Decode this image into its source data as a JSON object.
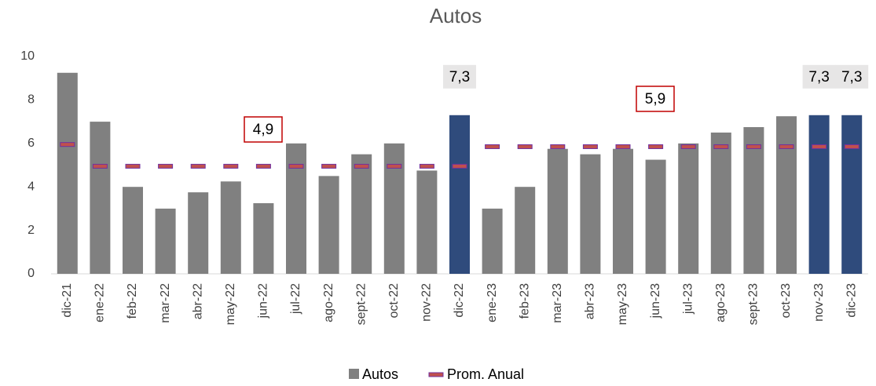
{
  "chart_data": {
    "type": "bar",
    "title": "Autos",
    "categories": [
      "dic-21",
      "ene-22",
      "feb-22",
      "mar-22",
      "abr-22",
      "may-22",
      "jun-22",
      "jul-22",
      "ago-22",
      "sept-22",
      "oct-22",
      "nov-22",
      "dic-22",
      "ene-23",
      "feb-23",
      "mar-23",
      "abr-23",
      "may-23",
      "jun-23",
      "jul-23",
      "ago-23",
      "sept-23",
      "oct-23",
      "nov-23",
      "dic-23"
    ],
    "series": [
      {
        "name": "Autos",
        "type": "bar",
        "color": "#808080",
        "colors": [
          "#808080",
          "#808080",
          "#808080",
          "#808080",
          "#808080",
          "#808080",
          "#808080",
          "#808080",
          "#808080",
          "#808080",
          "#808080",
          "#808080",
          "#2f4b7c",
          "#808080",
          "#808080",
          "#808080",
          "#808080",
          "#808080",
          "#808080",
          "#808080",
          "#808080",
          "#808080",
          "#808080",
          "#2f4b7c",
          "#2f4b7c"
        ],
        "values": [
          9.25,
          7.0,
          4.0,
          3.0,
          3.75,
          4.25,
          3.25,
          6.0,
          4.5,
          5.5,
          6.0,
          4.75,
          7.3,
          3.0,
          4.0,
          5.75,
          5.5,
          5.75,
          5.25,
          6.0,
          6.5,
          6.75,
          7.25,
          7.3,
          7.3
        ],
        "value_labels": [
          null,
          null,
          null,
          null,
          null,
          null,
          null,
          null,
          null,
          null,
          null,
          null,
          "7,3",
          null,
          null,
          null,
          null,
          null,
          null,
          null,
          null,
          null,
          null,
          "7,3",
          "7,3"
        ]
      },
      {
        "name": "Prom. Anual",
        "type": "marker",
        "color": "#c0504d",
        "values": [
          5.95,
          4.95,
          4.95,
          4.95,
          4.95,
          4.95,
          4.95,
          4.95,
          4.95,
          4.95,
          4.95,
          4.95,
          4.95,
          5.85,
          5.85,
          5.85,
          5.85,
          5.85,
          5.85,
          5.85,
          5.85,
          5.85,
          5.85,
          5.85,
          5.85
        ]
      }
    ],
    "annotations": [
      "4,9",
      "5,9"
    ],
    "ylim": [
      0,
      10
    ],
    "yticks": [
      0,
      2,
      4,
      6,
      8,
      10
    ],
    "grid": false
  }
}
